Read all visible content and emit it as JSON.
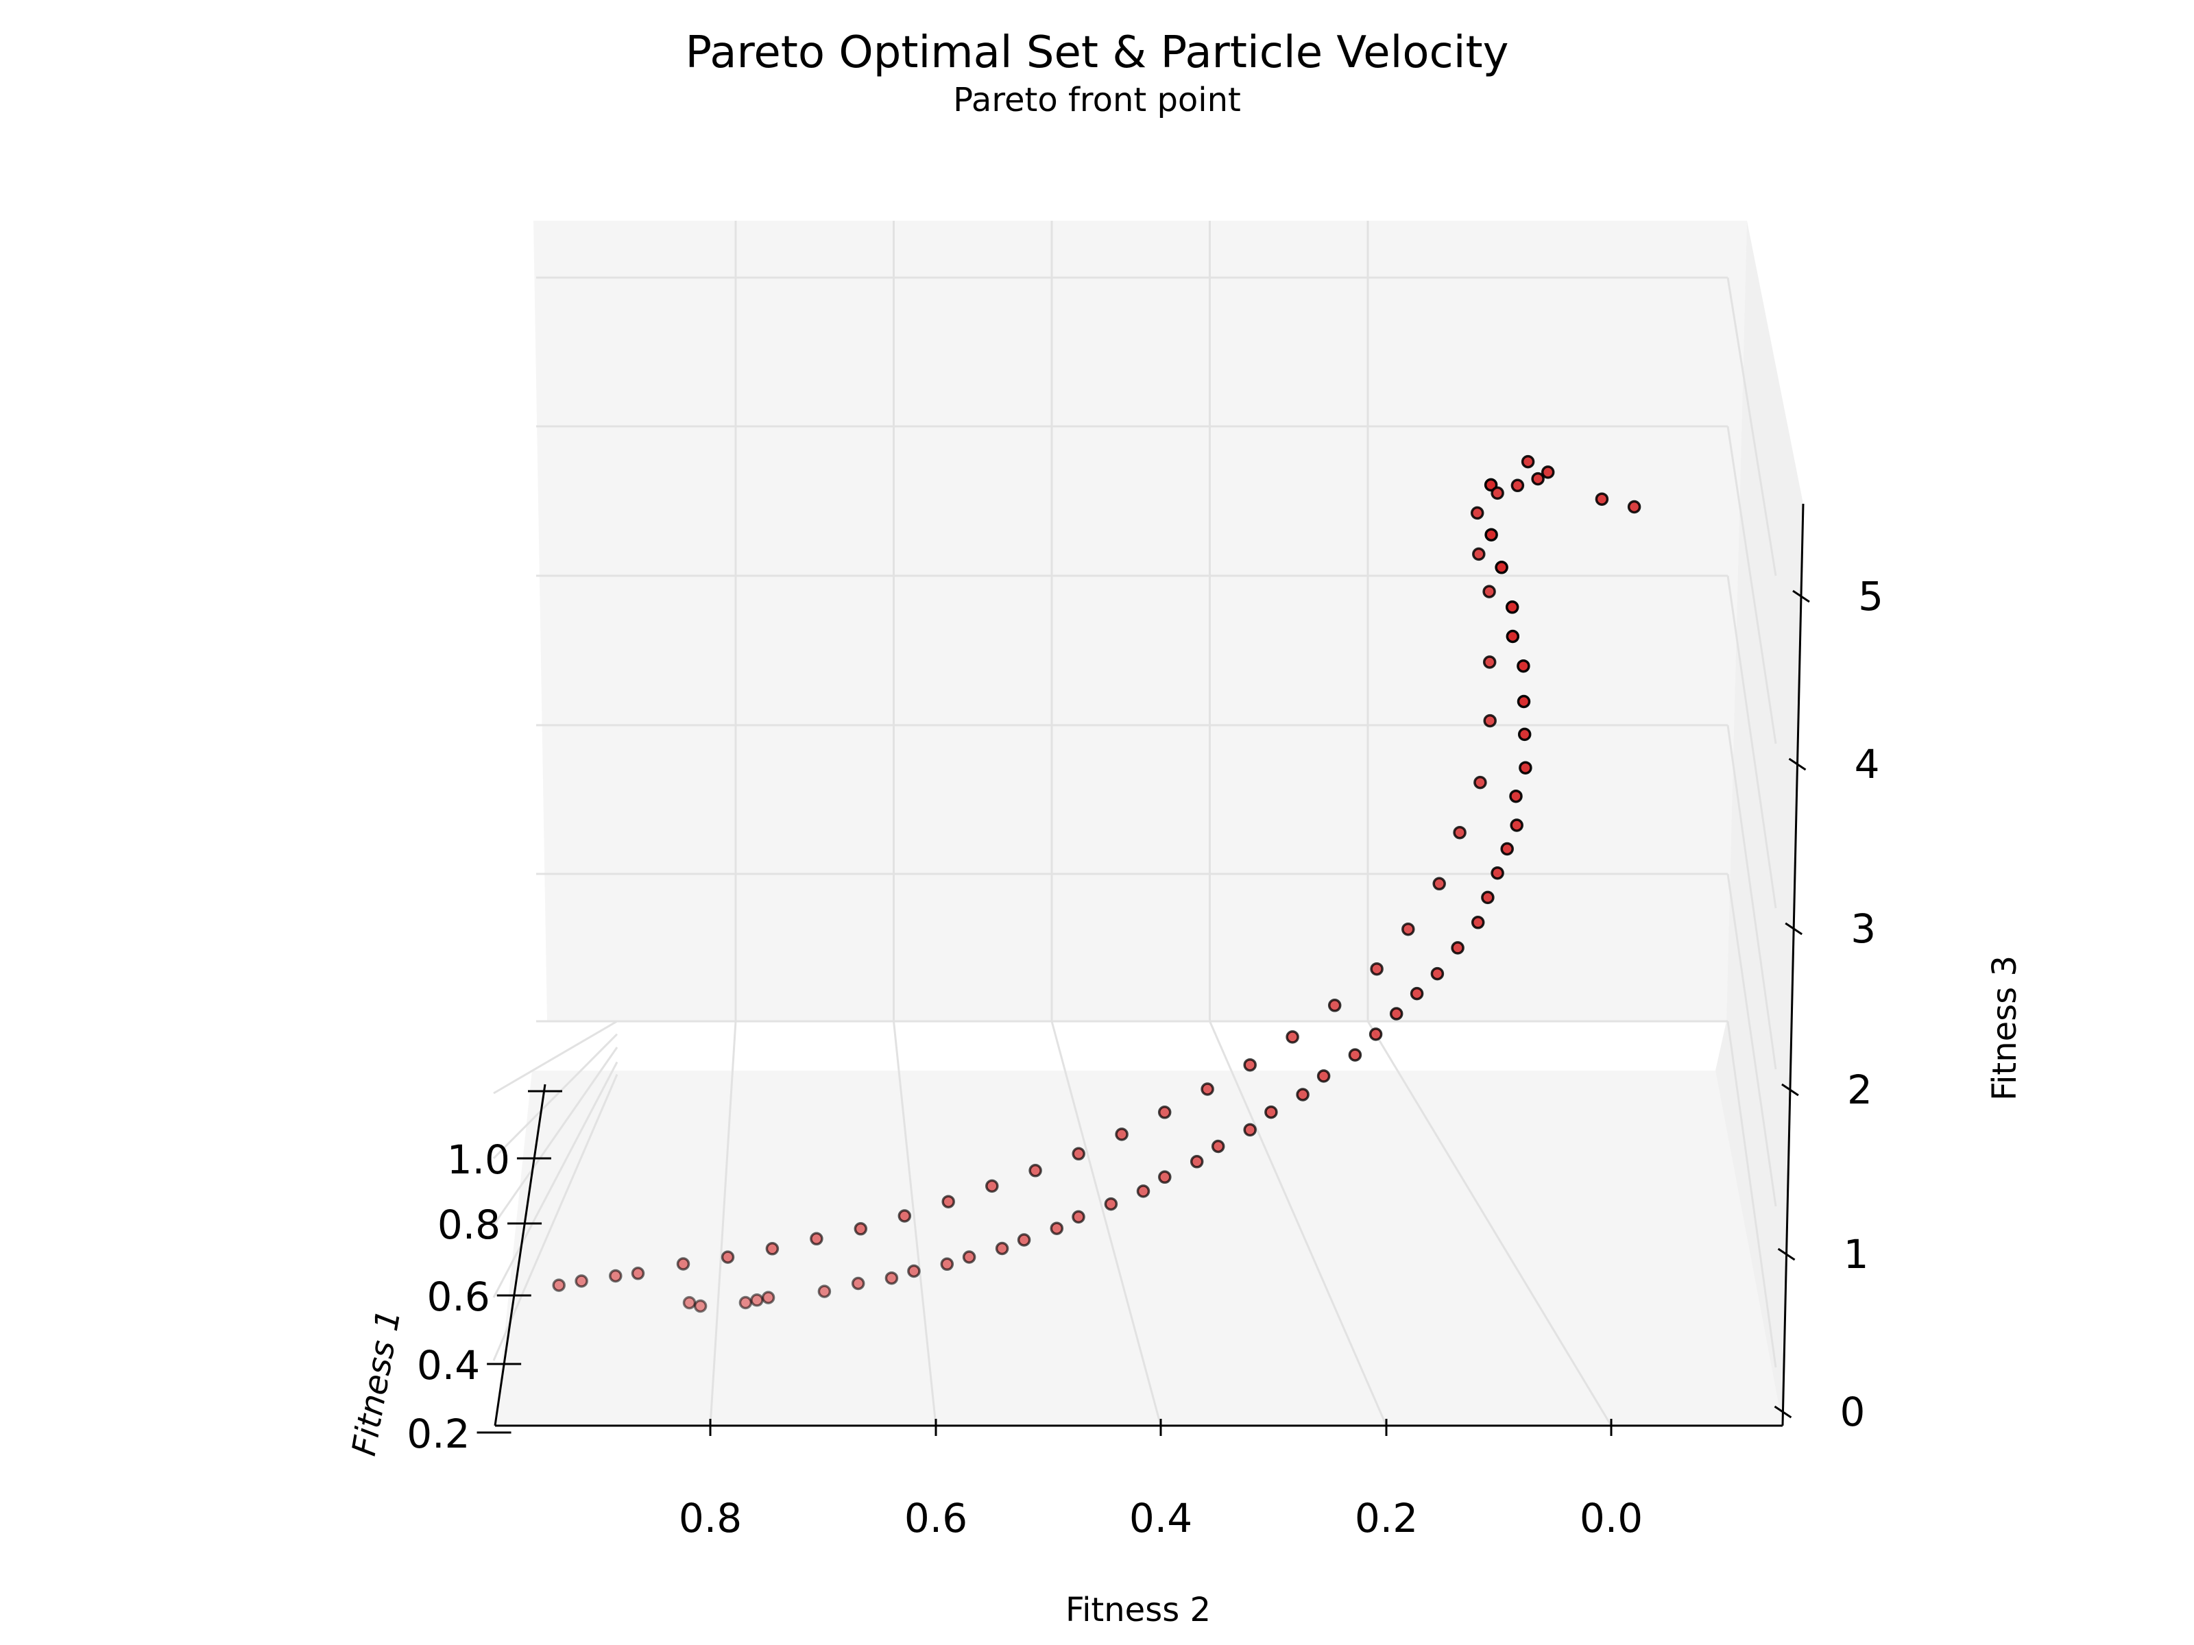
{
  "chart_data": {
    "type": "scatter",
    "projection": "3d",
    "title": "Pareto Optimal Set & Particle Velocity",
    "subtitle": "Pareto front point",
    "xlabel": "Fitness 1",
    "ylabel": "Fitness 2",
    "zlabel": "Fitness 3",
    "xlim": [
      0.2,
      1.1
    ],
    "ylim": [
      -0.15,
      1.0
    ],
    "zlim": [
      0,
      5.3
    ],
    "x_ticks": [
      "0.2",
      "0.4",
      "0.6",
      "0.8",
      "1.0"
    ],
    "y_ticks": [
      "0.8",
      "0.6",
      "0.4",
      "0.2",
      "0.0"
    ],
    "z_ticks": [
      "0",
      "1",
      "2",
      "3",
      "4",
      "5"
    ],
    "grid": true,
    "marker_color": "#d62728",
    "marker_edge": "#000000",
    "pane_color": "#f5f5f5",
    "grid_color": "#e2e2e2",
    "points": [
      {
        "x": 1.0,
        "y": 0.83,
        "z": 0.47
      },
      {
        "x": 1.0,
        "y": 0.82,
        "z": 0.45
      },
      {
        "x": 0.98,
        "y": 0.78,
        "z": 0.42
      },
      {
        "x": 0.97,
        "y": 0.77,
        "z": 0.41
      },
      {
        "x": 0.96,
        "y": 0.76,
        "z": 0.4
      },
      {
        "x": 0.93,
        "y": 0.71,
        "z": 0.36
      },
      {
        "x": 0.9,
        "y": 0.68,
        "z": 0.33
      },
      {
        "x": 0.88,
        "y": 0.65,
        "z": 0.31
      },
      {
        "x": 0.86,
        "y": 0.63,
        "z": 0.3
      },
      {
        "x": 0.84,
        "y": 0.6,
        "z": 0.29
      },
      {
        "x": 0.82,
        "y": 0.58,
        "z": 0.28
      },
      {
        "x": 0.8,
        "y": 0.55,
        "z": 0.28
      },
      {
        "x": 0.78,
        "y": 0.53,
        "z": 0.28
      },
      {
        "x": 0.76,
        "y": 0.5,
        "z": 0.3
      },
      {
        "x": 0.74,
        "y": 0.48,
        "z": 0.32
      },
      {
        "x": 0.72,
        "y": 0.45,
        "z": 0.35
      },
      {
        "x": 0.7,
        "y": 0.42,
        "z": 0.38
      },
      {
        "x": 0.68,
        "y": 0.4,
        "z": 0.42
      },
      {
        "x": 0.66,
        "y": 0.37,
        "z": 0.47
      },
      {
        "x": 0.64,
        "y": 0.35,
        "z": 0.52
      },
      {
        "x": 0.62,
        "y": 0.32,
        "z": 0.58
      },
      {
        "x": 0.6,
        "y": 0.3,
        "z": 0.65
      },
      {
        "x": 0.58,
        "y": 0.27,
        "z": 0.72
      },
      {
        "x": 0.56,
        "y": 0.25,
        "z": 0.8
      },
      {
        "x": 0.54,
        "y": 0.22,
        "z": 0.9
      },
      {
        "x": 0.52,
        "y": 0.2,
        "z": 1.0
      },
      {
        "x": 0.5,
        "y": 0.18,
        "z": 1.1
      },
      {
        "x": 0.48,
        "y": 0.16,
        "z": 1.2
      },
      {
        "x": 0.46,
        "y": 0.14,
        "z": 1.3
      },
      {
        "x": 0.44,
        "y": 0.12,
        "z": 1.45
      },
      {
        "x": 0.42,
        "y": 0.1,
        "z": 1.6
      },
      {
        "x": 0.4,
        "y": 0.09,
        "z": 1.75
      },
      {
        "x": 0.38,
        "y": 0.08,
        "z": 1.9
      },
      {
        "x": 0.36,
        "y": 0.07,
        "z": 2.05
      },
      {
        "x": 0.34,
        "y": 0.06,
        "z": 2.2
      },
      {
        "x": 0.32,
        "y": 0.06,
        "z": 2.4
      },
      {
        "x": 0.3,
        "y": 0.05,
        "z": 2.6
      },
      {
        "x": 0.28,
        "y": 0.05,
        "z": 2.85
      },
      {
        "x": 0.26,
        "y": 0.05,
        "z": 3.1
      },
      {
        "x": 0.25,
        "y": 0.05,
        "z": 3.4
      },
      {
        "x": 0.24,
        "y": 0.06,
        "z": 3.65
      },
      {
        "x": 0.23,
        "y": 0.06,
        "z": 3.9
      },
      {
        "x": 0.22,
        "y": 0.07,
        "z": 4.25
      },
      {
        "x": 0.22,
        "y": 0.08,
        "z": 4.55
      },
      {
        "x": 0.21,
        "y": 0.08,
        "z": 5.0
      },
      {
        "x": 0.95,
        "y": 0.95,
        "z": 0.45
      },
      {
        "x": 0.94,
        "y": 0.93,
        "z": 0.45
      },
      {
        "x": 0.92,
        "y": 0.9,
        "z": 0.43
      },
      {
        "x": 0.91,
        "y": 0.88,
        "z": 0.42
      },
      {
        "x": 0.88,
        "y": 0.84,
        "z": 0.4
      },
      {
        "x": 0.86,
        "y": 0.8,
        "z": 0.39
      },
      {
        "x": 0.84,
        "y": 0.76,
        "z": 0.39
      },
      {
        "x": 0.82,
        "y": 0.72,
        "z": 0.4
      },
      {
        "x": 0.8,
        "y": 0.68,
        "z": 0.41
      },
      {
        "x": 0.78,
        "y": 0.64,
        "z": 0.44
      },
      {
        "x": 0.76,
        "y": 0.6,
        "z": 0.48
      },
      {
        "x": 0.74,
        "y": 0.56,
        "z": 0.53
      },
      {
        "x": 0.72,
        "y": 0.52,
        "z": 0.58
      },
      {
        "x": 0.7,
        "y": 0.48,
        "z": 0.64
      },
      {
        "x": 0.68,
        "y": 0.44,
        "z": 0.72
      },
      {
        "x": 0.66,
        "y": 0.4,
        "z": 0.82
      },
      {
        "x": 0.64,
        "y": 0.36,
        "z": 0.93
      },
      {
        "x": 0.62,
        "y": 0.32,
        "z": 1.05
      },
      {
        "x": 0.6,
        "y": 0.28,
        "z": 1.2
      },
      {
        "x": 0.58,
        "y": 0.24,
        "z": 1.38
      },
      {
        "x": 0.56,
        "y": 0.2,
        "z": 1.6
      },
      {
        "x": 0.54,
        "y": 0.17,
        "z": 1.85
      },
      {
        "x": 0.52,
        "y": 0.14,
        "z": 2.15
      },
      {
        "x": 0.5,
        "y": 0.12,
        "z": 2.5
      },
      {
        "x": 0.48,
        "y": 0.1,
        "z": 2.85
      },
      {
        "x": 0.46,
        "y": 0.09,
        "z": 3.3
      },
      {
        "x": 0.45,
        "y": 0.09,
        "z": 3.75
      },
      {
        "x": 0.44,
        "y": 0.09,
        "z": 4.3
      },
      {
        "x": 0.44,
        "y": 0.1,
        "z": 4.6
      },
      {
        "x": 0.4,
        "y": 0.1,
        "z": 4.9
      },
      {
        "x": 0.38,
        "y": 0.08,
        "z": 5.05
      },
      {
        "x": 0.36,
        "y": 0.06,
        "z": 5.1
      },
      {
        "x": 0.35,
        "y": 0.04,
        "z": 5.15
      },
      {
        "x": 0.34,
        "y": 0.03,
        "z": 5.2
      },
      {
        "x": 0.36,
        "y": 0.05,
        "z": 5.3
      },
      {
        "x": 0.38,
        "y": -0.02,
        "z": 5.0
      },
      {
        "x": 0.4,
        "y": -0.05,
        "z": 4.95
      }
    ]
  }
}
